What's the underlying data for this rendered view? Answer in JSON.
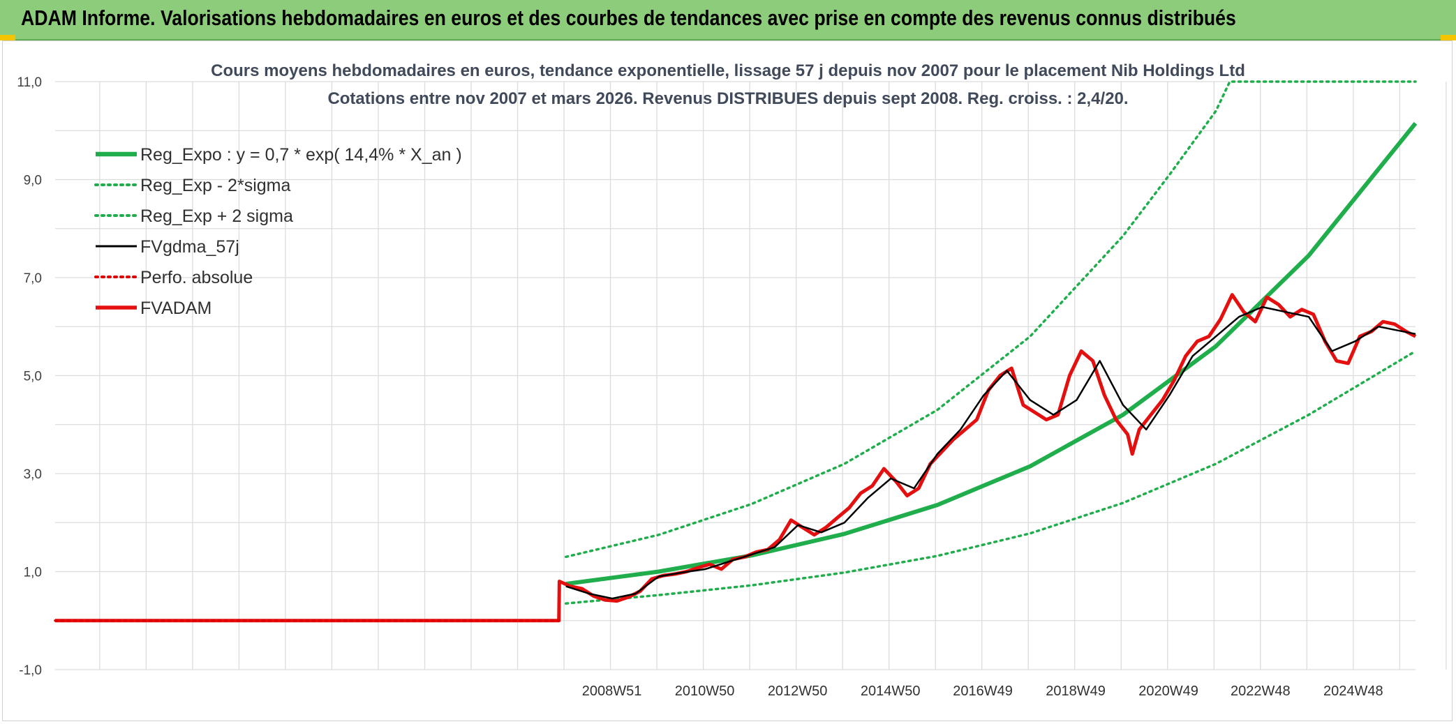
{
  "banner": {
    "title": "ADAM Informe. Valorisations hebdomadaires en euros et des courbes de tendances avec prise en compte des revenus connus distribués"
  },
  "colors": {
    "banner_bg": "#8ccc7a",
    "reg_expo": "#1fae4b",
    "sigma_bands": "#1fae4b",
    "fvgdma": "#000000",
    "perfo": "#e00000",
    "fvadam": "#e41010"
  },
  "chart_data": {
    "type": "line",
    "title_line1": "Cours moyens hebdomadaires en euros, tendance exponentielle, lissage 57 j depuis nov 2007 pour le placement Nib Holdings Ltd",
    "title_line2": "Cotations entre nov 2007 et mars 2026. Revenus DISTRIBUES depuis sept 2008. Reg. croiss. : 2,4/20.",
    "ylim": [
      -1,
      11
    ],
    "yticks": [
      "-1,0",
      "1,0",
      "3,0",
      "5,0",
      "7,0",
      "9,0",
      "11,0"
    ],
    "xlim": [
      1997.0,
      2026.3
    ],
    "xtick_labels": [
      "2008W51",
      "2010W50",
      "2012W50",
      "2014W50",
      "2016W49",
      "2018W49",
      "2020W49",
      "2022W48",
      "2024W48"
    ],
    "xtick_years": [
      2008.96,
      2010.96,
      2012.96,
      2014.96,
      2016.95,
      2018.95,
      2020.95,
      2022.93,
      2024.93
    ],
    "grid": true,
    "legend_position": "top-left",
    "series": [
      {
        "name": "Reg_Expo : y = 0,7 * exp( 14,4% *  X_an )",
        "style": "solid-thick",
        "color": "#1fae4b",
        "x": [
          2008.0,
          2010.0,
          2012.0,
          2014.0,
          2016.0,
          2018.0,
          2020.0,
          2022.0,
          2024.0,
          2026.3
        ],
        "y": [
          0.75,
          1.0,
          1.33,
          1.77,
          2.36,
          3.15,
          4.2,
          5.6,
          7.45,
          10.15
        ]
      },
      {
        "name": "Reg_Exp - 2*sigma",
        "style": "dotted",
        "color": "#1fae4b",
        "x": [
          2008.0,
          2010.0,
          2012.0,
          2014.0,
          2016.0,
          2018.0,
          2020.0,
          2022.0,
          2024.0,
          2026.3
        ],
        "y": [
          0.35,
          0.52,
          0.72,
          0.98,
          1.32,
          1.78,
          2.4,
          3.2,
          4.2,
          5.5
        ]
      },
      {
        "name": "Reg_Exp + 2 sigma",
        "style": "dotted",
        "color": "#1fae4b",
        "x": [
          2008.0,
          2010.0,
          2012.0,
          2014.0,
          2016.0,
          2018.0,
          2020.0,
          2021.0,
          2022.0,
          2022.3,
          2026.3
        ],
        "y": [
          1.3,
          1.75,
          2.38,
          3.2,
          4.3,
          5.8,
          7.85,
          9.1,
          10.4,
          11.0,
          11.0
        ]
      },
      {
        "name": "FVgdma_57j",
        "style": "solid",
        "color": "#000000",
        "x": [
          2008.0,
          2008.5,
          2009.0,
          2009.5,
          2010.0,
          2010.5,
          2011.0,
          2011.5,
          2012.0,
          2012.5,
          2013.0,
          2013.5,
          2014.0,
          2014.5,
          2015.0,
          2015.5,
          2016.0,
          2016.5,
          2017.0,
          2017.5,
          2018.0,
          2018.5,
          2019.0,
          2019.5,
          2020.0,
          2020.5,
          2021.0,
          2021.5,
          2022.0,
          2022.5,
          2023.0,
          2023.5,
          2024.0,
          2024.5,
          2025.0,
          2025.5,
          2026.3
        ],
        "y": [
          0.7,
          0.55,
          0.45,
          0.55,
          0.9,
          0.98,
          1.05,
          1.2,
          1.35,
          1.5,
          1.95,
          1.8,
          2.0,
          2.5,
          2.9,
          2.7,
          3.4,
          3.9,
          4.6,
          5.1,
          4.5,
          4.2,
          4.5,
          5.3,
          4.4,
          3.9,
          4.6,
          5.4,
          5.8,
          6.2,
          6.4,
          6.3,
          6.2,
          5.5,
          5.7,
          6.0,
          5.85
        ]
      },
      {
        "name": "Perfo. absolue",
        "style": "dotted",
        "color": "#e00000",
        "x": [
          1997.0,
          2007.85
        ],
        "y": [
          0.0,
          0.0
        ]
      },
      {
        "name": "FVADAM",
        "style": "solid-thick",
        "color": "#e41010",
        "x": [
          1997.0,
          2007.85,
          2007.86,
          2008.1,
          2008.35,
          2008.6,
          2008.85,
          2009.1,
          2009.35,
          2009.6,
          2009.85,
          2010.1,
          2010.35,
          2010.6,
          2010.85,
          2011.1,
          2011.35,
          2011.6,
          2011.85,
          2012.1,
          2012.35,
          2012.6,
          2012.85,
          2013.1,
          2013.35,
          2013.6,
          2013.85,
          2014.1,
          2014.35,
          2014.6,
          2014.85,
          2015.1,
          2015.35,
          2015.6,
          2015.85,
          2016.1,
          2016.35,
          2016.6,
          2016.85,
          2017.1,
          2017.35,
          2017.6,
          2017.85,
          2018.1,
          2018.35,
          2018.6,
          2018.85,
          2019.1,
          2019.35,
          2019.6,
          2019.85,
          2020.1,
          2020.2,
          2020.35,
          2020.6,
          2020.85,
          2021.1,
          2021.35,
          2021.6,
          2021.85,
          2022.1,
          2022.35,
          2022.6,
          2022.85,
          2023.1,
          2023.35,
          2023.6,
          2023.85,
          2024.1,
          2024.35,
          2024.6,
          2024.85,
          2025.1,
          2025.35,
          2025.6,
          2025.85,
          2026.1,
          2026.3
        ],
        "y": [
          0.0,
          0.0,
          0.8,
          0.7,
          0.65,
          0.5,
          0.42,
          0.4,
          0.48,
          0.6,
          0.85,
          0.92,
          0.95,
          1.0,
          1.08,
          1.15,
          1.05,
          1.25,
          1.3,
          1.4,
          1.45,
          1.65,
          2.05,
          1.9,
          1.75,
          1.9,
          2.1,
          2.3,
          2.6,
          2.75,
          3.1,
          2.85,
          2.55,
          2.7,
          3.2,
          3.45,
          3.7,
          3.9,
          4.1,
          4.7,
          5.0,
          5.15,
          4.4,
          4.25,
          4.1,
          4.2,
          5.0,
          5.5,
          5.3,
          4.6,
          4.1,
          3.8,
          3.4,
          3.9,
          4.2,
          4.5,
          4.9,
          5.4,
          5.7,
          5.8,
          6.15,
          6.65,
          6.3,
          6.1,
          6.6,
          6.45,
          6.2,
          6.35,
          6.25,
          5.7,
          5.3,
          5.25,
          5.8,
          5.9,
          6.1,
          6.05,
          5.9,
          5.8
        ]
      }
    ]
  }
}
